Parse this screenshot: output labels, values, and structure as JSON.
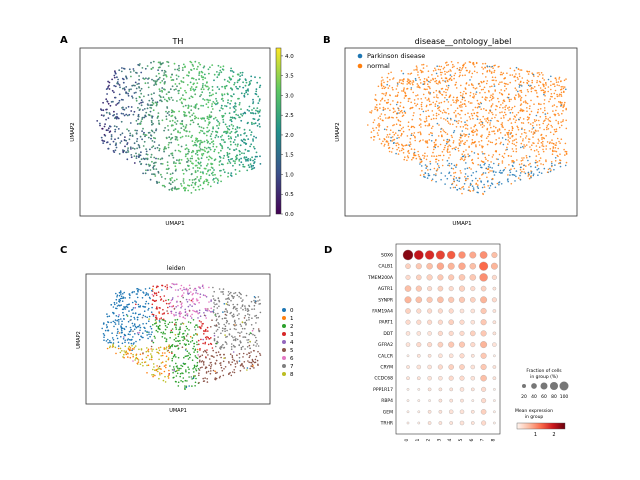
{
  "panels": {
    "A": {
      "letter": "A",
      "title": "TH",
      "xlabel": "UMAP1",
      "ylabel": "UMAP2",
      "colorbar_ticks": [
        "0.0",
        "0.5",
        "1.0",
        "1.5",
        "2.0",
        "2.5",
        "3.0",
        "3.5",
        "4.0"
      ]
    },
    "B": {
      "letter": "B",
      "title": "disease__ontology_label",
      "xlabel": "UMAP1",
      "ylabel": "UMAP2",
      "legend": [
        {
          "label": "Parkinson disease",
          "color": "#1f77b4"
        },
        {
          "label": "normal",
          "color": "#ff7f0e"
        }
      ]
    },
    "C": {
      "letter": "C",
      "title": "leiden",
      "xlabel": "UMAP1",
      "ylabel": "UMAP2",
      "legend": [
        {
          "label": "0",
          "color": "#1f77b4"
        },
        {
          "label": "1",
          "color": "#ff7f0e"
        },
        {
          "label": "2",
          "color": "#2ca02c"
        },
        {
          "label": "3",
          "color": "#d62728"
        },
        {
          "label": "4",
          "color": "#9467bd"
        },
        {
          "label": "5",
          "color": "#8c564b"
        },
        {
          "label": "6",
          "color": "#e377c2"
        },
        {
          "label": "7",
          "color": "#7f7f7f"
        },
        {
          "label": "8",
          "color": "#bcbd22"
        }
      ]
    },
    "D": {
      "letter": "D",
      "size_legend_title_1": "Fraction of cells",
      "size_legend_title_2": "in group (%)",
      "size_legend_ticks": [
        "20",
        "40",
        "60",
        "80",
        "100"
      ],
      "color_legend_title_1": "Mean expression",
      "color_legend_title_2": "in group",
      "color_legend_ticks": [
        "1",
        "2"
      ]
    }
  },
  "colors": {
    "viridis_low": "#440154",
    "viridis_high": "#fde725",
    "reds_low": "#fee0d2",
    "reds_high": "#67000d"
  },
  "chart_data": [
    {
      "type": "scatter",
      "panel": "A",
      "title": "TH",
      "xlabel": "UMAP1",
      "ylabel": "UMAP2",
      "colorbar_range": [
        0,
        4.2
      ],
      "color_map": "viridis",
      "note_values": "per-cell expression of TH; higher on the right side of the embedding"
    },
    {
      "type": "scatter",
      "panel": "B",
      "title": "disease__ontology_label",
      "xlabel": "UMAP1",
      "ylabel": "UMAP2",
      "categories": [
        "Parkinson disease",
        "normal"
      ]
    },
    {
      "type": "scatter",
      "panel": "C",
      "title": "leiden",
      "xlabel": "UMAP1",
      "ylabel": "UMAP2",
      "categories": [
        "0",
        "1",
        "2",
        "3",
        "4",
        "5",
        "6",
        "7",
        "8"
      ]
    },
    {
      "type": "heatmap",
      "panel": "D",
      "genes": [
        "SOX6",
        "CALB1",
        "TMEM200A",
        "AGTR1",
        "SYNPR",
        "FAM19A4",
        "PART1",
        "DDT",
        "GFRA2",
        "CALCR",
        "CRYM",
        "CCDC68",
        "PPP1R17",
        "RBP4",
        "GEM",
        "TRHR"
      ],
      "groups": [
        "0",
        "1",
        "2",
        "3",
        "4",
        "5",
        "6",
        "7",
        "8"
      ],
      "fraction_percent": [
        [
          95,
          80,
          75,
          70,
          60,
          45,
          40,
          50,
          30
        ],
        [
          25,
          30,
          35,
          45,
          40,
          45,
          35,
          70,
          40
        ],
        [
          20,
          25,
          30,
          30,
          30,
          35,
          35,
          60,
          20
        ],
        [
          35,
          30,
          20,
          25,
          20,
          30,
          20,
          25,
          10
        ],
        [
          40,
          35,
          30,
          35,
          30,
          30,
          25,
          40,
          20
        ],
        [
          25,
          20,
          20,
          20,
          20,
          15,
          15,
          30,
          10
        ],
        [
          20,
          20,
          20,
          20,
          25,
          20,
          15,
          30,
          10
        ],
        [
          15,
          15,
          15,
          20,
          20,
          20,
          25,
          30,
          10
        ],
        [
          15,
          20,
          20,
          25,
          30,
          30,
          20,
          40,
          15
        ],
        [
          5,
          10,
          10,
          15,
          15,
          20,
          10,
          30,
          5
        ],
        [
          10,
          15,
          15,
          20,
          25,
          25,
          15,
          30,
          10
        ],
        [
          10,
          10,
          15,
          15,
          20,
          20,
          15,
          35,
          10
        ],
        [
          5,
          5,
          10,
          10,
          10,
          15,
          10,
          20,
          5
        ],
        [
          5,
          5,
          5,
          10,
          10,
          10,
          5,
          20,
          5
        ],
        [
          5,
          5,
          10,
          10,
          15,
          15,
          10,
          25,
          5
        ],
        [
          5,
          5,
          10,
          10,
          10,
          15,
          10,
          20,
          5
        ]
      ],
      "mean_expression": [
        [
          2.4,
          2.0,
          1.8,
          1.6,
          1.4,
          1.0,
          0.8,
          1.0,
          0.6
        ],
        [
          0.4,
          0.5,
          0.6,
          0.8,
          0.7,
          0.8,
          0.6,
          1.3,
          0.7
        ],
        [
          0.3,
          0.4,
          0.4,
          0.5,
          0.5,
          0.5,
          0.5,
          1.0,
          0.3
        ],
        [
          0.6,
          0.5,
          0.3,
          0.4,
          0.3,
          0.4,
          0.3,
          0.4,
          0.2
        ],
        [
          0.7,
          0.6,
          0.5,
          0.6,
          0.5,
          0.5,
          0.4,
          0.7,
          0.3
        ],
        [
          0.4,
          0.3,
          0.3,
          0.3,
          0.3,
          0.2,
          0.2,
          0.5,
          0.2
        ],
        [
          0.3,
          0.3,
          0.3,
          0.3,
          0.4,
          0.3,
          0.2,
          0.5,
          0.2
        ],
        [
          0.2,
          0.2,
          0.2,
          0.3,
          0.3,
          0.3,
          0.4,
          0.5,
          0.2
        ],
        [
          0.2,
          0.3,
          0.3,
          0.4,
          0.5,
          0.5,
          0.3,
          0.7,
          0.2
        ],
        [
          0.1,
          0.2,
          0.2,
          0.2,
          0.2,
          0.3,
          0.2,
          0.5,
          0.1
        ],
        [
          0.2,
          0.2,
          0.2,
          0.3,
          0.4,
          0.4,
          0.2,
          0.5,
          0.2
        ],
        [
          0.2,
          0.2,
          0.2,
          0.2,
          0.3,
          0.3,
          0.2,
          0.6,
          0.2
        ],
        [
          0.1,
          0.1,
          0.2,
          0.2,
          0.2,
          0.2,
          0.2,
          0.3,
          0.1
        ],
        [
          0.1,
          0.1,
          0.1,
          0.2,
          0.2,
          0.2,
          0.1,
          0.3,
          0.1
        ],
        [
          0.1,
          0.1,
          0.2,
          0.2,
          0.2,
          0.2,
          0.2,
          0.4,
          0.1
        ],
        [
          0.1,
          0.1,
          0.2,
          0.2,
          0.2,
          0.2,
          0.2,
          0.3,
          0.1
        ]
      ],
      "size_legend_range": [
        0,
        100
      ],
      "color_range": [
        0,
        2.6
      ]
    }
  ]
}
